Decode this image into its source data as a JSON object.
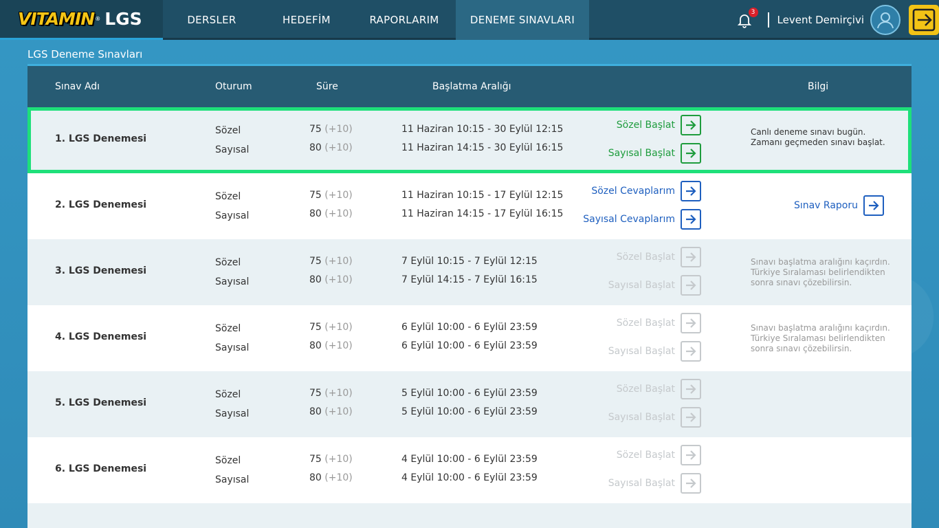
{
  "logo": {
    "vitamin": "VITAMIN",
    "reg": "®",
    "lgs": "LGS"
  },
  "nav": {
    "items": [
      {
        "label": "DERSLER"
      },
      {
        "label": "HEDEFİM"
      },
      {
        "label": "RAPORLARIM"
      },
      {
        "label": "DENEME SINAVLARI"
      }
    ],
    "active_index": 3
  },
  "header": {
    "notification_count": "3",
    "username": "Levent Demirçivi"
  },
  "page": {
    "title": "LGS Deneme Sınavları"
  },
  "table": {
    "headers": {
      "name": "Sınav Adı",
      "session": "Oturum",
      "duration": "Süre",
      "range": "Başlatma Aralığı",
      "info": "Bilgi"
    },
    "rows": [
      {
        "name": "1. LGS Denemesi",
        "s1": "Sözel",
        "s2": "Sayısal",
        "d1": "75",
        "d1x": "(+10)",
        "d2": "80",
        "d2x": "(+10)",
        "r1": "11 Haziran 10:15 - 30 Eylül 12:15",
        "r2": "11 Haziran 14:15 - 30 Eylül 16:15",
        "a1": "Sözel Başlat",
        "a2": "Sayısal Başlat",
        "info": "Canlı deneme sınavı bugün.\nZamanı geçmeden sınavı başlat."
      },
      {
        "name": "2. LGS Denemesi",
        "s1": "Sözel",
        "s2": "Sayısal",
        "d1": "75",
        "d1x": "(+10)",
        "d2": "80",
        "d2x": "(+10)",
        "r1": "11 Haziran 10:15 - 17 Eylül 12:15",
        "r2": "11 Haziran 14:15 - 17 Eylül 16:15",
        "a1": "Sözel Cevaplarım",
        "a2": "Sayısal Cevaplarım",
        "report": "Sınav Raporu"
      },
      {
        "name": "3. LGS Denemesi",
        "s1": "Sözel",
        "s2": "Sayısal",
        "d1": "75",
        "d1x": "(+10)",
        "d2": "80",
        "d2x": "(+10)",
        "r1": "7 Eylül 10:15 - 7 Eylül 12:15",
        "r2": "7 Eylül 14:15 - 7 Eylül 16:15",
        "a1": "Sözel Başlat",
        "a2": "Sayısal Başlat",
        "info": "Sınavı başlatma aralığını kaçırdın. Türkiye Sıralaması belirlendikten sonra sınavı çözebilirsin."
      },
      {
        "name": "4. LGS Denemesi",
        "s1": "Sözel",
        "s2": "Sayısal",
        "d1": "75",
        "d1x": "(+10)",
        "d2": "80",
        "d2x": "(+10)",
        "r1": "6 Eylül 10:00 - 6 Eylül 23:59",
        "r2": "6 Eylül 10:00 - 6 Eylül 23:59",
        "a1": "Sözel Başlat",
        "a2": "Sayısal Başlat",
        "info": "Sınavı başlatma aralığını kaçırdın. Türkiye Sıralaması belirlendikten sonra sınavı çözebilirsin."
      },
      {
        "name": "5. LGS Denemesi",
        "s1": "Sözel",
        "s2": "Sayısal",
        "d1": "75",
        "d1x": "(+10)",
        "d2": "80",
        "d2x": "(+10)",
        "r1": "5 Eylül 10:00 - 6 Eylül 23:59",
        "r2": "5 Eylül 10:00 - 6 Eylül 23:59",
        "a1": "Sözel Başlat",
        "a2": "Sayısal Başlat"
      },
      {
        "name": "6. LGS Denemesi",
        "s1": "Sözel",
        "s2": "Sayısal",
        "d1": "75",
        "d1x": "(+10)",
        "d2": "80",
        "d2x": "(+10)",
        "r1": "4 Eylül 10:00 - 6 Eylül 23:59",
        "r2": "4 Eylül 10:00 - 6 Eylül 23:59",
        "a1": "Sözel Başlat",
        "a2": "Sayısal Başlat"
      }
    ]
  },
  "colors": {
    "active_green": "#1e9c3d",
    "link_blue": "#1e5fbf",
    "disabled_gray": "#c5c9cc",
    "highlight_border": "#1ee07a",
    "brand_yellow": "#f2c316"
  }
}
